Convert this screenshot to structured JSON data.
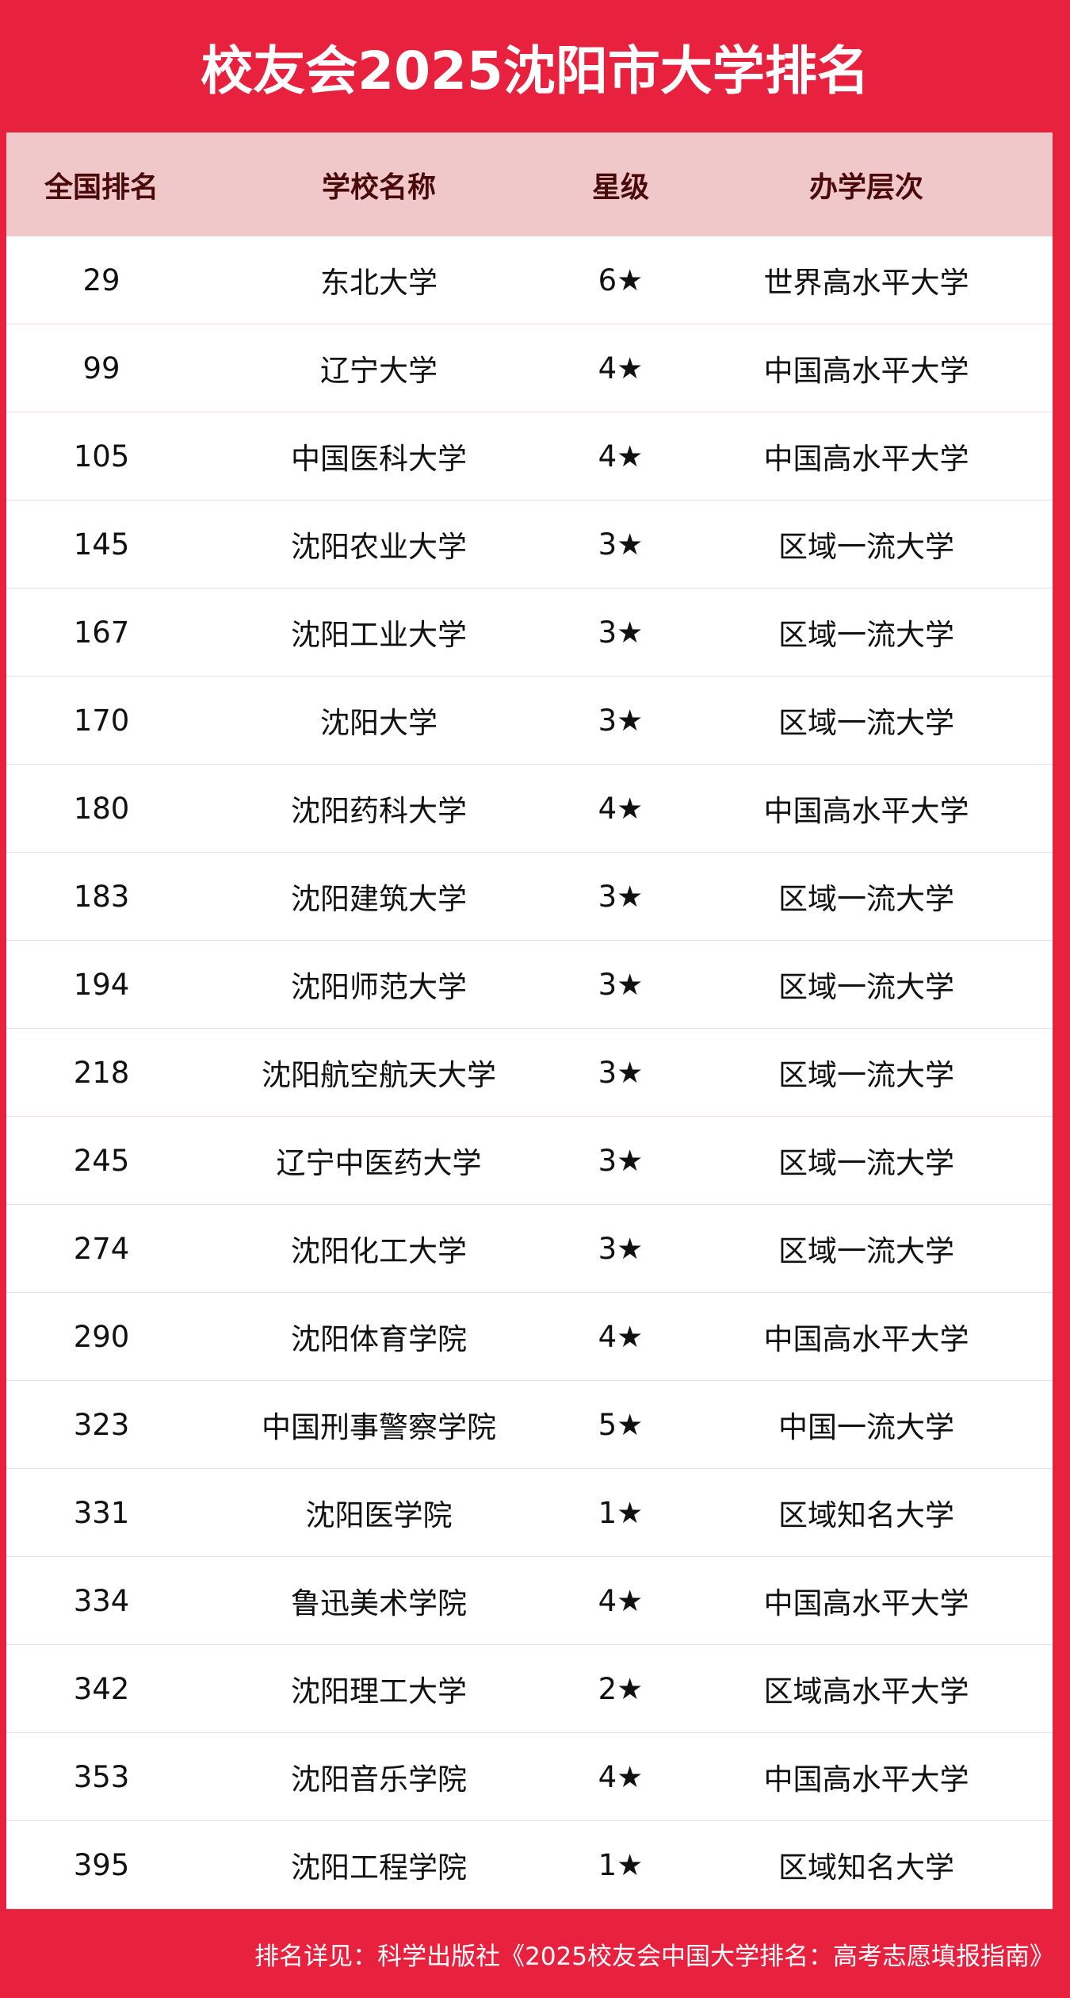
{
  "title": "校友会2025沈阳市大学排名",
  "colors": {
    "accent": "#e8213f",
    "header_bg": "#f0c8ca",
    "header_text": "#4a0a0a"
  },
  "columns": [
    "全国排名",
    "学校名称",
    "星级",
    "办学层次"
  ],
  "rows": [
    [
      "29",
      "东北大学",
      "6★",
      "世界高水平大学"
    ],
    [
      "99",
      "辽宁大学",
      "4★",
      "中国高水平大学"
    ],
    [
      "105",
      "中国医科大学",
      "4★",
      "中国高水平大学"
    ],
    [
      "145",
      "沈阳农业大学",
      "3★",
      "区域一流大学"
    ],
    [
      "167",
      "沈阳工业大学",
      "3★",
      "区域一流大学"
    ],
    [
      "170",
      "沈阳大学",
      "3★",
      "区域一流大学"
    ],
    [
      "180",
      "沈阳药科大学",
      "4★",
      "中国高水平大学"
    ],
    [
      "183",
      "沈阳建筑大学",
      "3★",
      "区域一流大学"
    ],
    [
      "194",
      "沈阳师范大学",
      "3★",
      "区域一流大学"
    ],
    [
      "218",
      "沈阳航空航天大学",
      "3★",
      "区域一流大学"
    ],
    [
      "245",
      "辽宁中医药大学",
      "3★",
      "区域一流大学"
    ],
    [
      "274",
      "沈阳化工大学",
      "3★",
      "区域一流大学"
    ],
    [
      "290",
      "沈阳体育学院",
      "4★",
      "中国高水平大学"
    ],
    [
      "323",
      "中国刑事警察学院",
      "5★",
      "中国一流大学"
    ],
    [
      "331",
      "沈阳医学院",
      "1★",
      "区域知名大学"
    ],
    [
      "334",
      "鲁迅美术学院",
      "4★",
      "中国高水平大学"
    ],
    [
      "342",
      "沈阳理工大学",
      "2★",
      "区域高水平大学"
    ],
    [
      "353",
      "沈阳音乐学院",
      "4★",
      "中国高水平大学"
    ],
    [
      "395",
      "沈阳工程学院",
      "1★",
      "区域知名大学"
    ]
  ],
  "footer": "排名详见：科学出版社《2025校友会中国大学排名：高考志愿填报指南》"
}
